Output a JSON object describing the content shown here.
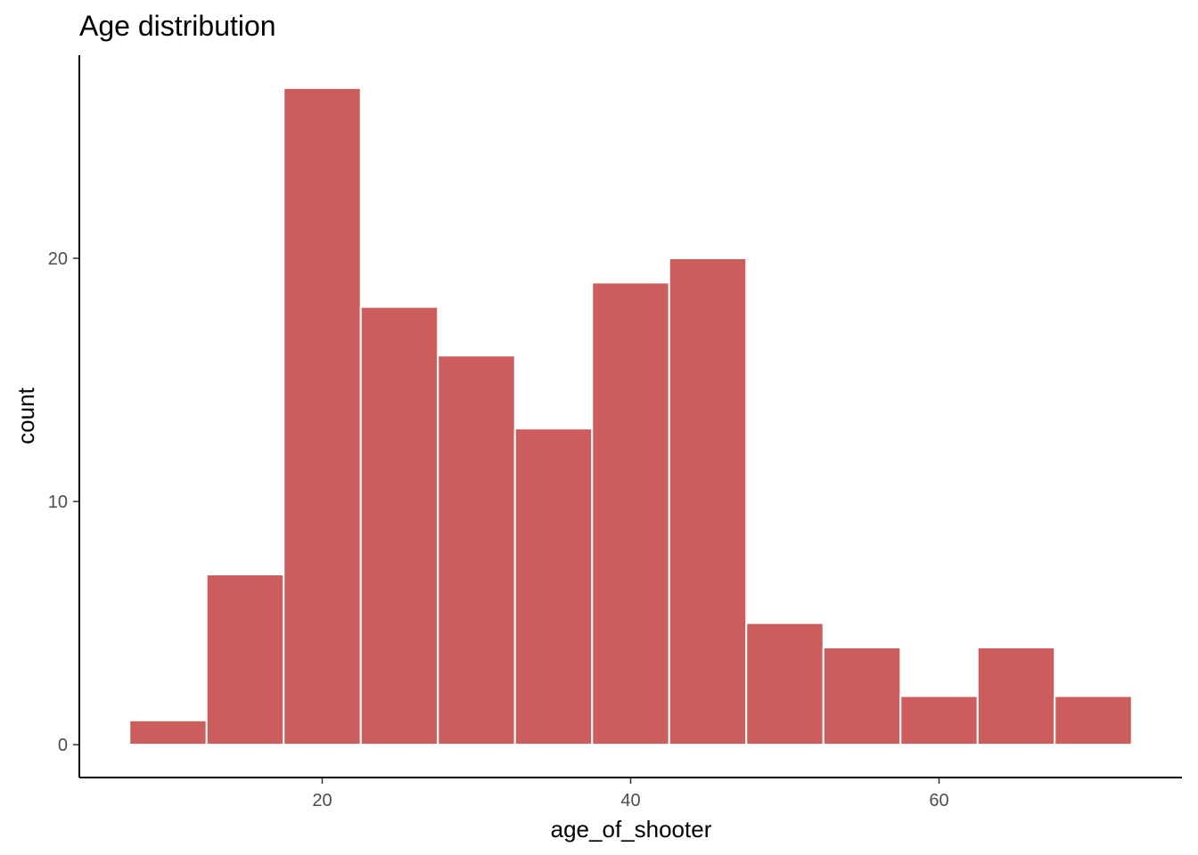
{
  "chart_data": {
    "type": "bar",
    "title": "Age distribution",
    "xlabel": "age_of_shooter",
    "ylabel": "count",
    "bin_width": 5,
    "bins": [
      {
        "from": 7.5,
        "to": 12.5,
        "count": 1
      },
      {
        "from": 12.5,
        "to": 17.5,
        "count": 7
      },
      {
        "from": 17.5,
        "to": 22.5,
        "count": 27
      },
      {
        "from": 22.5,
        "to": 27.5,
        "count": 18
      },
      {
        "from": 27.5,
        "to": 32.5,
        "count": 16
      },
      {
        "from": 32.5,
        "to": 37.5,
        "count": 13
      },
      {
        "from": 37.5,
        "to": 42.5,
        "count": 19
      },
      {
        "from": 42.5,
        "to": 47.5,
        "count": 20
      },
      {
        "from": 47.5,
        "to": 52.5,
        "count": 5
      },
      {
        "from": 52.5,
        "to": 57.5,
        "count": 4
      },
      {
        "from": 57.5,
        "to": 62.5,
        "count": 2
      },
      {
        "from": 62.5,
        "to": 67.5,
        "count": 4
      },
      {
        "from": 67.5,
        "to": 72.5,
        "count": 2
      }
    ],
    "xlim": [
      4.25,
      75.75
    ],
    "ylim": [
      -1.35,
      28.35
    ],
    "x_ticks": [
      20,
      40,
      60
    ],
    "x_tick_labels": [
      "20",
      "40",
      "60"
    ],
    "y_ticks": [
      0,
      10,
      20
    ],
    "y_tick_labels": [
      "0",
      "10",
      "20"
    ],
    "grid": false,
    "legend": "none",
    "colors": {
      "bar_fill": "#cd5c5c",
      "bar_outline": "#ffffff",
      "axis": "#000000",
      "tick_label": "#4d4d4d"
    }
  }
}
